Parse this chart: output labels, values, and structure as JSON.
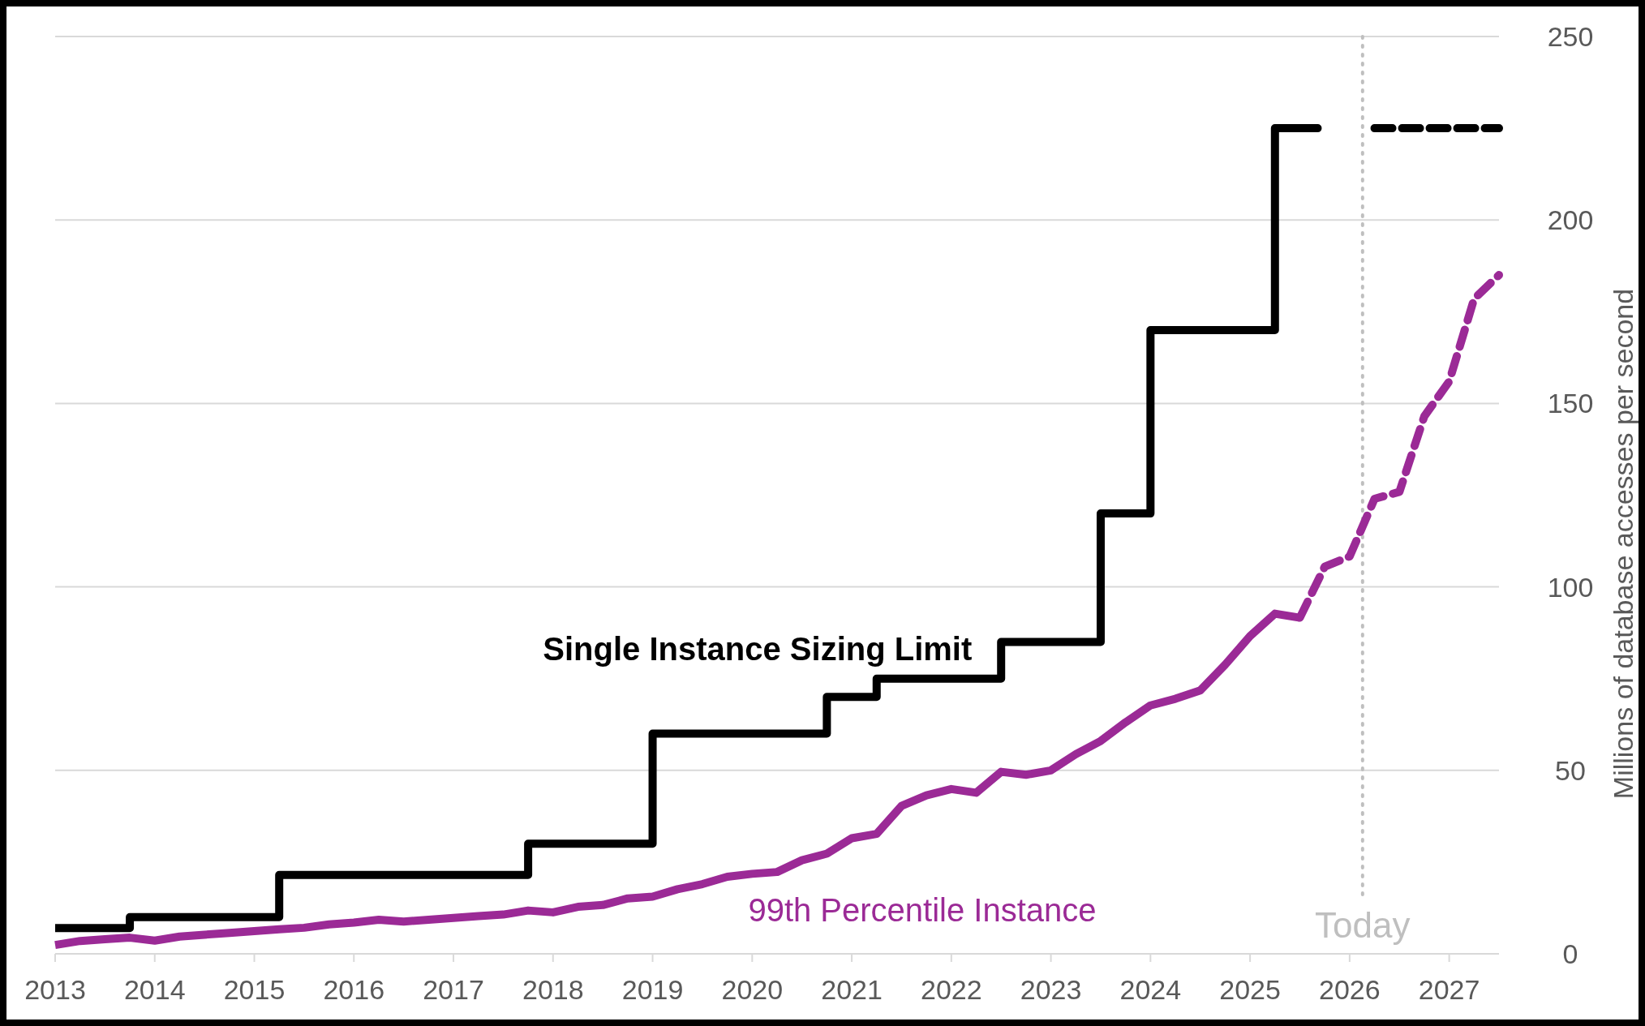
{
  "chart_data": {
    "type": "line",
    "xlim": [
      2013,
      2027.5
    ],
    "xticks": [
      2013,
      2014,
      2015,
      2016,
      2017,
      2018,
      2019,
      2020,
      2021,
      2022,
      2023,
      2024,
      2025,
      2026,
      2027
    ],
    "ylim": [
      0,
      250
    ],
    "yticks": [
      0,
      50,
      100,
      150,
      200,
      250
    ],
    "ylabel": "Millions of database accesses per second",
    "grid": "y",
    "legend": false,
    "marker": "none",
    "series": [
      {
        "name": "Single Instance Sizing Limit",
        "type": "step",
        "color": "#000000",
        "line_style": "solid",
        "x": [
          2013,
          2013.75,
          2015.25,
          2017.75,
          2019,
          2020.75,
          2021.25,
          2022.5,
          2023.5,
          2024,
          2025.25,
          2025.5
        ],
        "values": [
          7,
          10,
          21.5,
          30,
          60,
          70,
          75,
          85,
          120,
          170,
          225,
          225
        ]
      },
      {
        "type": "step",
        "color": "#000000",
        "line_style": "dashed",
        "x": [
          2025.5,
          2025.75,
          2026,
          2026.25,
          2026.5,
          2026.75,
          2027,
          2027.25,
          2027.5
        ],
        "values": [
          225,
          225,
          null,
          225,
          225,
          225,
          225,
          225,
          225
        ]
      },
      {
        "name": "99th Percentile Instance",
        "color": "#9b2a96",
        "line_style": "solid",
        "x": [
          2013,
          2013.25,
          2013.5,
          2013.75,
          2014,
          2014.25,
          2014.5,
          2014.75,
          2015,
          2015.25,
          2015.5,
          2015.75,
          2016,
          2016.25,
          2016.5,
          2016.75,
          2017,
          2017.25,
          2017.5,
          2017.75,
          2018,
          2018.25,
          2018.5,
          2018.75,
          2019,
          2019.25,
          2019.5,
          2019.75,
          2020,
          2020.25,
          2020.5,
          2020.75,
          2021,
          2021.25,
          2021.5,
          2021.75,
          2022,
          2022.25,
          2022.5,
          2022.75,
          2023,
          2023.25,
          2023.5,
          2023.75,
          2024,
          2024.25,
          2024.5,
          2024.75,
          2025,
          2025.25,
          2025.5
        ],
        "values": [
          2.4,
          3.5,
          4,
          4.4,
          3.6,
          4.7,
          5.2,
          5.7,
          6.2,
          6.7,
          7.1,
          8,
          8.5,
          9.3,
          8.8,
          9.3,
          9.8,
          10.3,
          10.7,
          11.8,
          11.3,
          12.8,
          13.3,
          15.1,
          15.6,
          17.6,
          19,
          21,
          21.8,
          22.3,
          25.5,
          27.3,
          31.5,
          32.7,
          40.3,
          43.2,
          44.9,
          43.9,
          49.6,
          48.8,
          50,
          54.4,
          58,
          63.1,
          67.7,
          69.5,
          71.8,
          78.8,
          86.6,
          92.7,
          91.6
        ]
      },
      {
        "color": "#9b2a96",
        "line_style": "dashed",
        "x": [
          2025.5,
          2025.75,
          2026,
          2026.25,
          2026.5,
          2026.75,
          2027,
          2027.25,
          2027.5
        ],
        "values": [
          91.6,
          105.5,
          108.3,
          124,
          125.9,
          146.5,
          156,
          178.5,
          185
        ]
      }
    ],
    "ref_lines": [
      {
        "axis": "x",
        "value": 2026.13,
        "label": "Today",
        "color": "#bfbfbf",
        "line_style": "dotted"
      }
    ]
  }
}
